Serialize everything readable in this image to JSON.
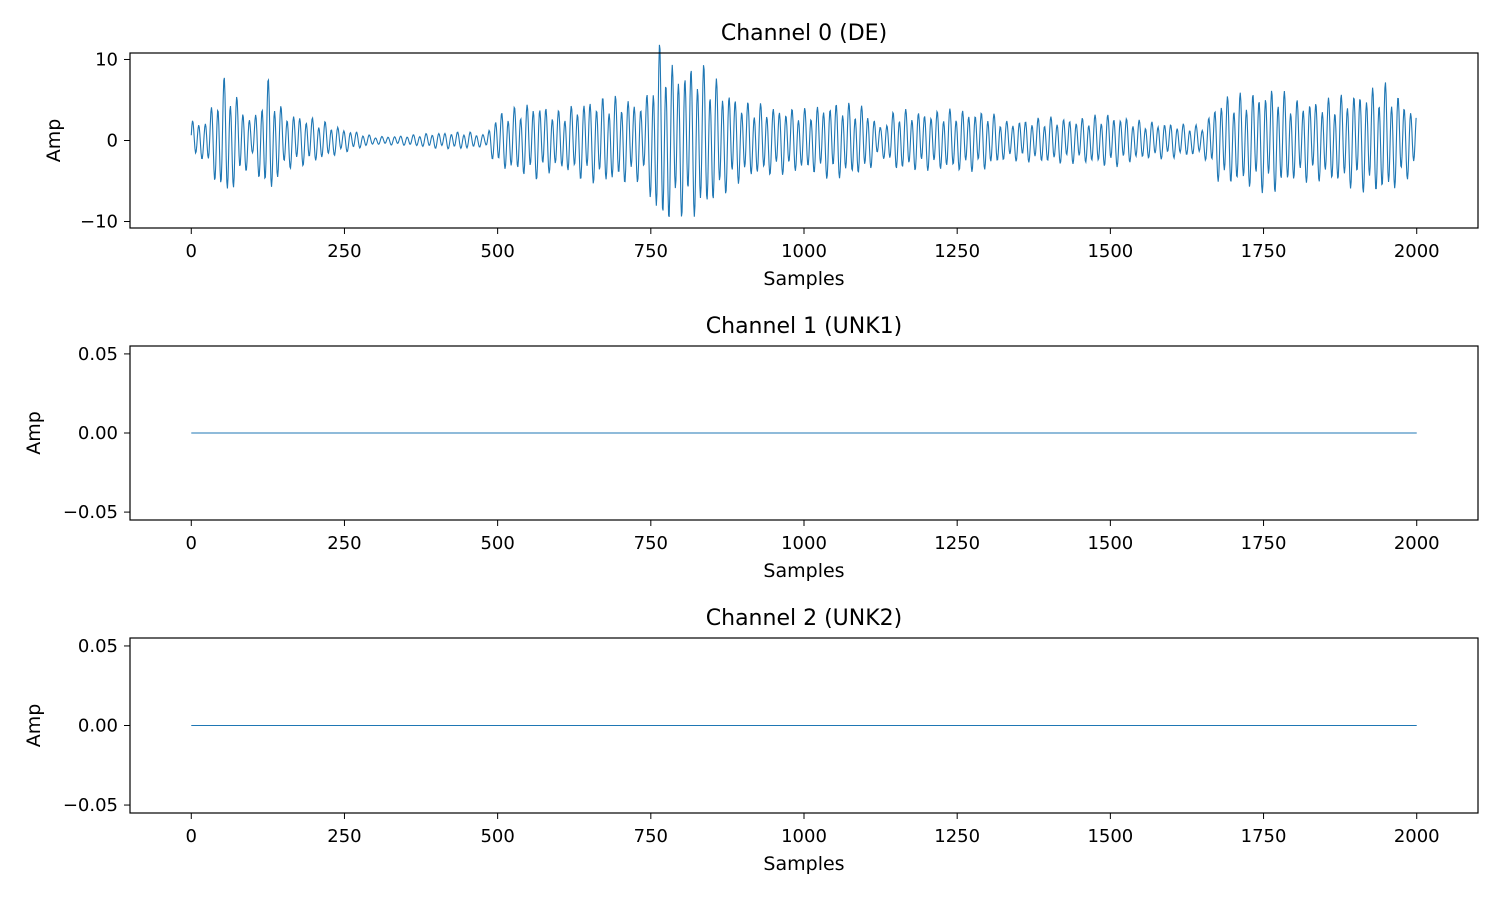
{
  "chart_data": [
    {
      "type": "line",
      "title": "Channel 0 (DE)",
      "xlabel": "Samples",
      "ylabel": "Amp",
      "xlim": [
        -100,
        2100
      ],
      "ylim": [
        -10.8,
        10.8
      ],
      "xticks": [
        0,
        250,
        500,
        750,
        1000,
        1250,
        1500,
        1750,
        2000
      ],
      "xtick_labels": [
        "0",
        "250",
        "500",
        "750",
        "1000",
        "1250",
        "1500",
        "1750",
        "2000"
      ],
      "yticks": [
        10,
        0,
        -10
      ],
      "ytick_labels": [
        "10",
        "0",
        "−10"
      ],
      "grid": false,
      "series": [
        {
          "color": "#1f77b4",
          "n_samples": 2000,
          "signal": {
            "carrier_period": 10.3,
            "envelope": [
              [
                0,
                2.2
              ],
              [
                20,
                1.8
              ],
              [
                55,
                6.5
              ],
              [
                80,
                4.0
              ],
              [
                100,
                2.0
              ],
              [
                125,
                6.3
              ],
              [
                150,
                3.0
              ],
              [
                200,
                2.3
              ],
              [
                250,
                1.2
              ],
              [
                300,
                0.4
              ],
              [
                350,
                0.5
              ],
              [
                400,
                0.8
              ],
              [
                450,
                0.9
              ],
              [
                480,
                0.6
              ],
              [
                500,
                2.8
              ],
              [
                560,
                4.0
              ],
              [
                600,
                3.0
              ],
              [
                650,
                4.3
              ],
              [
                700,
                4.5
              ],
              [
                740,
                4.0
              ],
              [
                765,
                9.8
              ],
              [
                790,
                7.5
              ],
              [
                830,
                8.0
              ],
              [
                870,
                5.5
              ],
              [
                900,
                4.0
              ],
              [
                950,
                3.5
              ],
              [
                1000,
                3.2
              ],
              [
                1050,
                4.0
              ],
              [
                1100,
                3.5
              ],
              [
                1125,
                1.5
              ],
              [
                1150,
                3.2
              ],
              [
                1200,
                3.0
              ],
              [
                1250,
                3.2
              ],
              [
                1300,
                3.0
              ],
              [
                1330,
                2.0
              ],
              [
                1400,
                2.4
              ],
              [
                1450,
                2.3
              ],
              [
                1500,
                2.8
              ],
              [
                1550,
                2.0
              ],
              [
                1600,
                1.8
              ],
              [
                1650,
                1.5
              ],
              [
                1680,
                4.5
              ],
              [
                1720,
                4.8
              ],
              [
                1770,
                5.5
              ],
              [
                1800,
                4.2
              ],
              [
                1850,
                4.2
              ],
              [
                1900,
                5.0
              ],
              [
                1950,
                5.8
              ],
              [
                2000,
                3.0
              ]
            ]
          }
        }
      ]
    },
    {
      "type": "line",
      "title": "Channel 1 (UNK1)",
      "xlabel": "Samples",
      "ylabel": "Amp",
      "xlim": [
        -100,
        2100
      ],
      "ylim": [
        -0.055,
        0.055
      ],
      "xticks": [
        0,
        250,
        500,
        750,
        1000,
        1250,
        1500,
        1750,
        2000
      ],
      "xtick_labels": [
        "0",
        "250",
        "500",
        "750",
        "1000",
        "1250",
        "1500",
        "1750",
        "2000"
      ],
      "yticks": [
        0.05,
        0,
        -0.05
      ],
      "ytick_labels": [
        "0.05",
        "0.00",
        "−0.05"
      ],
      "grid": false,
      "series": [
        {
          "color": "#1f77b4",
          "x": [
            0,
            2000
          ],
          "y": [
            0,
            0
          ]
        }
      ]
    },
    {
      "type": "line",
      "title": "Channel 2 (UNK2)",
      "xlabel": "Samples",
      "ylabel": "Amp",
      "xlim": [
        -100,
        2100
      ],
      "ylim": [
        -0.055,
        0.055
      ],
      "xticks": [
        0,
        250,
        500,
        750,
        1000,
        1250,
        1500,
        1750,
        2000
      ],
      "xtick_labels": [
        "0",
        "250",
        "500",
        "750",
        "1000",
        "1250",
        "1500",
        "1750",
        "2000"
      ],
      "yticks": [
        0.05,
        0,
        -0.05
      ],
      "ytick_labels": [
        "0.05",
        "0.00",
        "−0.05"
      ],
      "grid": false,
      "series": [
        {
          "color": "#1f77b4",
          "x": [
            0,
            2000
          ],
          "y": [
            0,
            0
          ]
        }
      ]
    }
  ]
}
